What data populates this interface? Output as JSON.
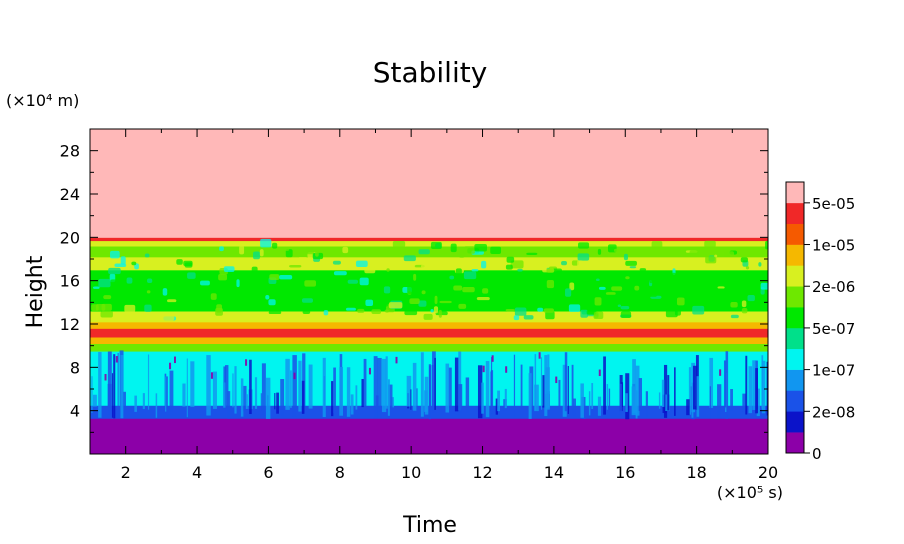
{
  "chart_data": {
    "type": "heatmap",
    "title": "Stability",
    "xlabel": "Time",
    "ylabel": "Height",
    "x_unit": "(×10⁵ s)",
    "y_unit": "(×10⁴ m)",
    "xlim": [
      1,
      20
    ],
    "ylim": [
      0,
      30
    ],
    "x_ticks": [
      2,
      4,
      6,
      8,
      10,
      12,
      14,
      16,
      18,
      20
    ],
    "y_ticks": [
      4,
      8,
      12,
      16,
      20,
      24,
      28
    ],
    "colorbar": {
      "colors": [
        "#8c00a8",
        "#0b13c9",
        "#1a52e8",
        "#1196f0",
        "#00f5f0",
        "#00e08a",
        "#00e800",
        "#6ee800",
        "#d8f020",
        "#f5b800",
        "#f55a00",
        "#f02828",
        "#ffb8b8"
      ],
      "labels": [
        "0",
        "2e-08",
        "1e-07",
        "5e-07",
        "2e-06",
        "1e-05",
        "5e-05"
      ]
    },
    "layers": [
      {
        "from": 0,
        "to": 3.3,
        "level": 0
      },
      {
        "from": 3.3,
        "to": 4.5,
        "level": 2
      },
      {
        "from": 4.5,
        "to": 9.5,
        "level": 4
      },
      {
        "from": 9.5,
        "to": 10.2,
        "level": 7
      },
      {
        "from": 10.2,
        "to": 10.8,
        "level": 9
      },
      {
        "from": 10.8,
        "to": 11.6,
        "level": 11
      },
      {
        "from": 11.6,
        "to": 12.2,
        "level": 9
      },
      {
        "from": 12.2,
        "to": 13.2,
        "level": 8
      },
      {
        "from": 13.2,
        "to": 14.4,
        "level": 6
      },
      {
        "from": 14.4,
        "to": 17.0,
        "level": 6
      },
      {
        "from": 17.0,
        "to": 18.2,
        "level": 8
      },
      {
        "from": 18.2,
        "to": 19.2,
        "level": 7
      },
      {
        "from": 19.2,
        "to": 19.7,
        "level": 8
      },
      {
        "from": 19.7,
        "to": 20.0,
        "level": 11
      },
      {
        "from": 20.0,
        "to": 30.0,
        "level": 12
      }
    ]
  }
}
